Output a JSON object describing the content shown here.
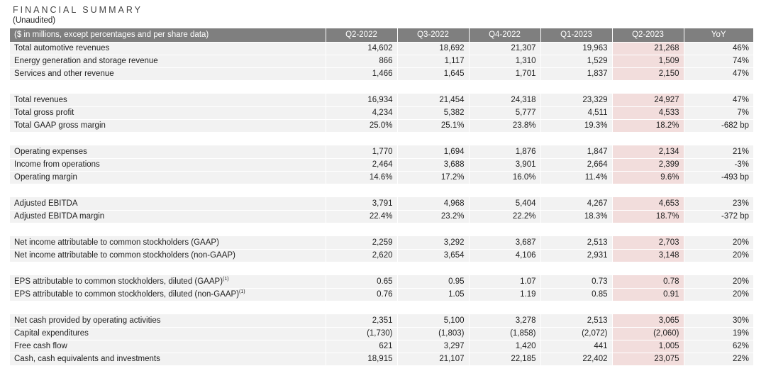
{
  "page": {
    "title": "FINANCIAL SUMMARY",
    "subtitle": "(Unaudited)"
  },
  "colors": {
    "header_bg": "#7f7f7f",
    "header_text": "#ffffff",
    "row_bg": "#f2f2f2",
    "highlight_bg": "#f2dddc",
    "text": "#1f1f1f"
  },
  "table": {
    "header": [
      "($ in millions, except percentages and per share data)",
      "Q2-2022",
      "Q3-2022",
      "Q4-2022",
      "Q1-2023",
      "Q2-2023",
      "YoY"
    ],
    "highlight_column": "Q2-2023",
    "sections": [
      {
        "rows": [
          {
            "label": "Total automotive revenues",
            "values": [
              "14,602",
              "18,692",
              "21,307",
              "19,963",
              "21,268"
            ],
            "yoy": "46%"
          },
          {
            "label": "Energy generation and storage revenue",
            "values": [
              "866",
              "1,117",
              "1,310",
              "1,529",
              "1,509"
            ],
            "yoy": "74%"
          },
          {
            "label": "Services and other revenue",
            "values": [
              "1,466",
              "1,645",
              "1,701",
              "1,837",
              "2,150"
            ],
            "yoy": "47%"
          }
        ]
      },
      {
        "rows": [
          {
            "label": "Total revenues",
            "values": [
              "16,934",
              "21,454",
              "24,318",
              "23,329",
              "24,927"
            ],
            "yoy": "47%"
          },
          {
            "label": "Total gross profit",
            "values": [
              "4,234",
              "5,382",
              "5,777",
              "4,511",
              "4,533"
            ],
            "yoy": "7%"
          },
          {
            "label": "Total GAAP gross margin",
            "values": [
              "25.0%",
              "25.1%",
              "23.8%",
              "19.3%",
              "18.2%"
            ],
            "yoy": "-682 bp"
          }
        ]
      },
      {
        "rows": [
          {
            "label": "Operating expenses",
            "values": [
              "1,770",
              "1,694",
              "1,876",
              "1,847",
              "2,134"
            ],
            "yoy": "21%"
          },
          {
            "label": "Income from operations",
            "values": [
              "2,464",
              "3,688",
              "3,901",
              "2,664",
              "2,399"
            ],
            "yoy": "-3%"
          },
          {
            "label": "Operating margin",
            "values": [
              "14.6%",
              "17.2%",
              "16.0%",
              "11.4%",
              "9.6%"
            ],
            "yoy": "-493 bp"
          }
        ]
      },
      {
        "rows": [
          {
            "label": "Adjusted EBITDA",
            "values": [
              "3,791",
              "4,968",
              "5,404",
              "4,267",
              "4,653"
            ],
            "yoy": "23%"
          },
          {
            "label": "Adjusted EBITDA margin",
            "values": [
              "22.4%",
              "23.2%",
              "22.2%",
              "18.3%",
              "18.7%"
            ],
            "yoy": "-372 bp"
          }
        ]
      },
      {
        "rows": [
          {
            "label": "Net income attributable to common stockholders (GAAP)",
            "values": [
              "2,259",
              "3,292",
              "3,687",
              "2,513",
              "2,703"
            ],
            "yoy": "20%"
          },
          {
            "label": "Net income attributable to common stockholders (non-GAAP)",
            "values": [
              "2,620",
              "3,654",
              "4,106",
              "2,931",
              "3,148"
            ],
            "yoy": "20%"
          }
        ]
      },
      {
        "rows": [
          {
            "label": "EPS attributable to common stockholders, diluted (GAAP)",
            "sup": "(1)",
            "values": [
              "0.65",
              "0.95",
              "1.07",
              "0.73",
              "0.78"
            ],
            "yoy": "20%"
          },
          {
            "label": "EPS attributable to common stockholders, diluted (non-GAAP)",
            "sup": "(1)",
            "values": [
              "0.76",
              "1.05",
              "1.19",
              "0.85",
              "0.91"
            ],
            "yoy": "20%"
          }
        ]
      },
      {
        "rows": [
          {
            "label": "Net cash provided by operating activities",
            "values": [
              "2,351",
              "5,100",
              "3,278",
              "2,513",
              "3,065"
            ],
            "yoy": "30%"
          },
          {
            "label": "Capital expenditures",
            "values": [
              "(1,730)",
              "(1,803)",
              "(1,858)",
              "(2,072)",
              "(2,060)"
            ],
            "yoy": "19%"
          },
          {
            "label": "Free cash flow",
            "values": [
              "621",
              "3,297",
              "1,420",
              "441",
              "1,005"
            ],
            "yoy": "62%"
          },
          {
            "label": "Cash, cash equivalents and investments",
            "values": [
              "18,915",
              "21,107",
              "22,185",
              "22,402",
              "23,075"
            ],
            "yoy": "22%"
          }
        ]
      }
    ]
  }
}
